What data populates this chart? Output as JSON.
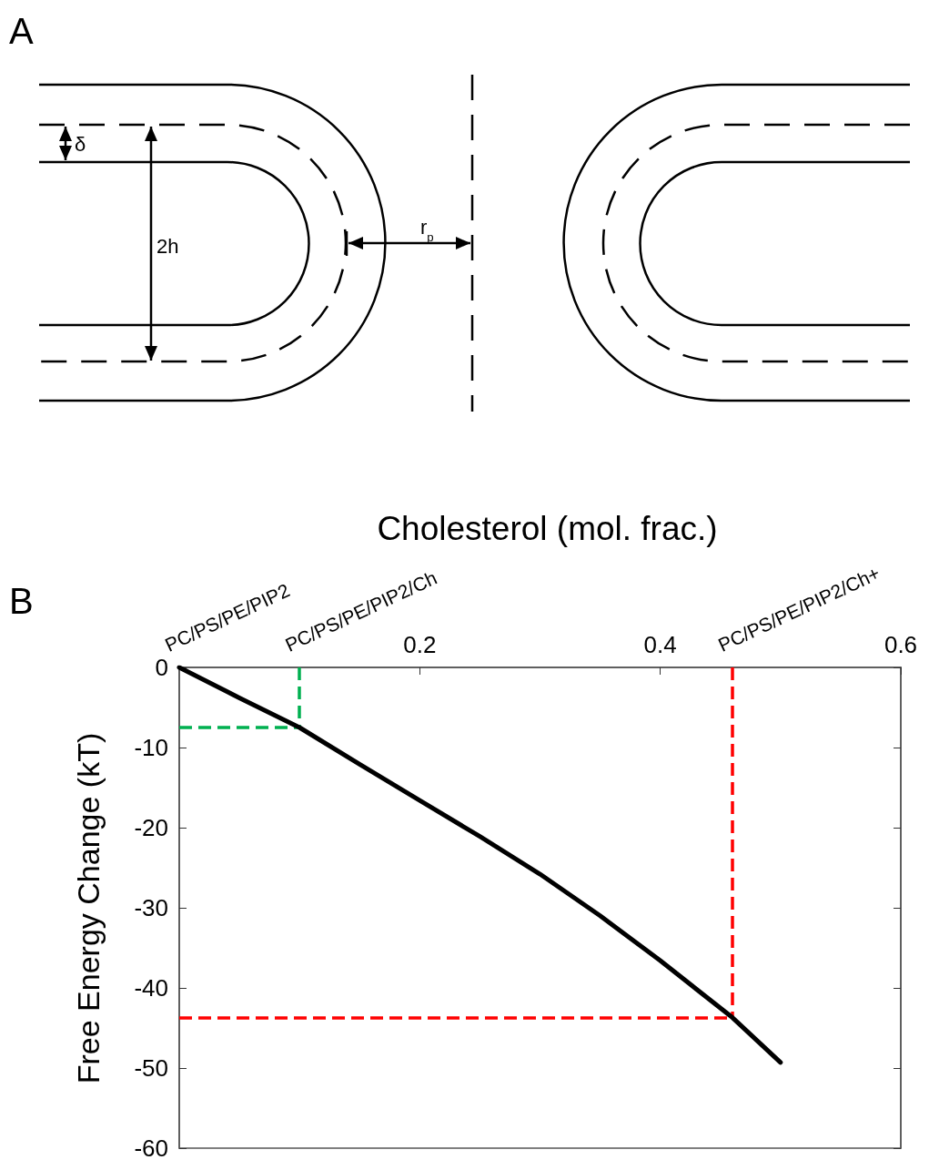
{
  "chart_data": [
    {
      "type": "other",
      "title": "A",
      "annotations": [
        "δ",
        "2h",
        "r$_{p}$"
      ]
    },
    {
      "type": "line",
      "title": "B",
      "xlabel": "Cholesterol (mol. frac.)",
      "ylabel": "Free Energy Change (kT)",
      "x": [
        0,
        0.05,
        0.1,
        0.15,
        0.2,
        0.25,
        0.3,
        0.35,
        0.4,
        0.46,
        0.5
      ],
      "series": [
        {
          "color": "#000000",
          "values": [
            0,
            -3.8,
            -7.5,
            -12.1,
            -16.6,
            -21.1,
            -25.8,
            -31,
            -36.6,
            -43.7,
            -49.3
          ]
        }
      ],
      "xlim": [
        0,
        0.6
      ],
      "xticks": [
        0.2,
        0.4,
        0.6
      ],
      "ylim": [
        -60,
        0
      ],
      "yticks": [
        -60,
        -50,
        -40,
        -30,
        -20,
        -10,
        0
      ],
      "grid": false,
      "marker": "none",
      "line_style": "solid",
      "ref_lines": [
        {
          "axis": "x",
          "value": 0.1,
          "color": "#00b050",
          "line_style": "dashed"
        },
        {
          "axis": "y",
          "value": -7.5,
          "color": "#00b050",
          "line_style": "dashed"
        },
        {
          "axis": "x",
          "value": 0.46,
          "color": "#ff0000",
          "line_style": "dashed"
        },
        {
          "axis": "y",
          "value": -43.7,
          "color": "#ff0000",
          "line_style": "dashed"
        }
      ],
      "annotations": [
        "PC/PS/PE/PIP2",
        "PC/PS/PE/PIP2/Ch",
        "PC/PS/PE/PIP2/Ch+"
      ]
    }
  ]
}
